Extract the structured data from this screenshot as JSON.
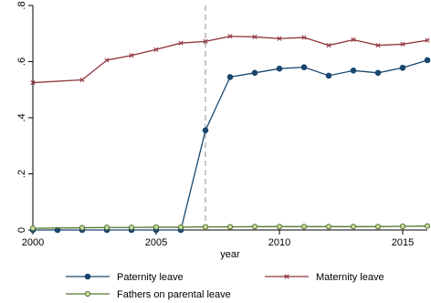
{
  "chart_data": {
    "type": "line",
    "title": "",
    "xlabel": "year",
    "ylabel": "",
    "xlim": [
      2000,
      2016
    ],
    "ylim": [
      0,
      0.8
    ],
    "x_ticks": [
      2000,
      2005,
      2010,
      2015
    ],
    "x_tick_labels": [
      "2000",
      "2005",
      "2010",
      "2015"
    ],
    "y_ticks": [
      0,
      0.2,
      0.4,
      0.6,
      0.8
    ],
    "y_tick_labels": [
      "0",
      ".2",
      ".4",
      ".6",
      ".8"
    ],
    "grid": false,
    "legend_placement": "bottom",
    "annotations": [
      {
        "type": "vertical-dashed-line",
        "x": 2007
      }
    ],
    "series": [
      {
        "name": "Paternity leave",
        "color": "#1a476f",
        "marker": "filled-circle",
        "x": [
          2000,
          2001,
          2002,
          2003,
          2004,
          2005,
          2006,
          2007,
          2008,
          2009,
          2010,
          2011,
          2012,
          2013,
          2014,
          2015,
          2016
        ],
        "values": [
          0.0,
          0.0,
          0.0,
          0.0,
          0.0,
          0.0,
          0.0,
          0.355,
          0.545,
          0.56,
          0.575,
          0.58,
          0.55,
          0.568,
          0.56,
          0.578,
          0.605
        ]
      },
      {
        "name": "Maternity leave",
        "color": "#90353b",
        "marker": "x",
        "x": [
          2000,
          2002,
          2003,
          2004,
          2005,
          2006,
          2007,
          2008,
          2009,
          2010,
          2011,
          2012,
          2013,
          2014,
          2015,
          2016
        ],
        "values": [
          0.525,
          0.535,
          0.605,
          0.622,
          0.643,
          0.666,
          0.672,
          0.69,
          0.688,
          0.682,
          0.686,
          0.658,
          0.678,
          0.658,
          0.662,
          0.676
        ]
      },
      {
        "name": "Fathers on parental leave",
        "color": "#55752f",
        "marker": "hollow-circle",
        "x": [
          2000,
          2002,
          2003,
          2004,
          2005,
          2006,
          2007,
          2008,
          2009,
          2010,
          2011,
          2012,
          2013,
          2014,
          2015,
          2016
        ],
        "values": [
          0.006,
          0.008,
          0.009,
          0.009,
          0.01,
          0.01,
          0.011,
          0.011,
          0.012,
          0.012,
          0.012,
          0.012,
          0.012,
          0.012,
          0.013,
          0.014
        ]
      }
    ]
  }
}
